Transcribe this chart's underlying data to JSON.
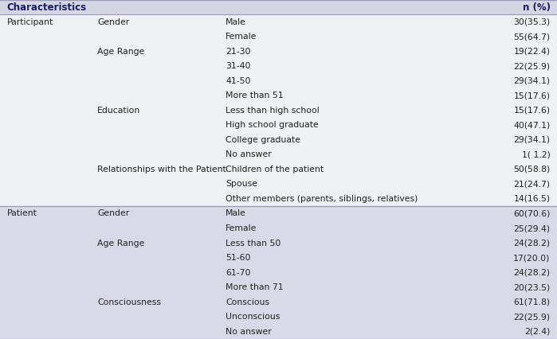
{
  "rows": [
    {
      "group": "Participant",
      "category": "Gender",
      "subcategory": "Male",
      "value": "30(35.3)",
      "section": "participant"
    },
    {
      "group": "",
      "category": "",
      "subcategory": "Female",
      "value": "55(64.7)",
      "section": "participant"
    },
    {
      "group": "",
      "category": "Age Range",
      "subcategory": "21-30",
      "value": "19(22.4)",
      "section": "participant"
    },
    {
      "group": "",
      "category": "",
      "subcategory": "31-40",
      "value": "22(25.9)",
      "section": "participant"
    },
    {
      "group": "",
      "category": "",
      "subcategory": "41-50",
      "value": "29(34.1)",
      "section": "participant"
    },
    {
      "group": "",
      "category": "",
      "subcategory": "More than 51",
      "value": "15(17.6)",
      "section": "participant"
    },
    {
      "group": "",
      "category": "Education",
      "subcategory": "Less than high school",
      "value": "15(17.6)",
      "section": "participant"
    },
    {
      "group": "",
      "category": "",
      "subcategory": "High school graduate",
      "value": "40(47.1)",
      "section": "participant"
    },
    {
      "group": "",
      "category": "",
      "subcategory": "College graduate",
      "value": "29(34.1)",
      "section": "participant"
    },
    {
      "group": "",
      "category": "",
      "subcategory": "No answer",
      "value": "1( 1.2)",
      "section": "participant"
    },
    {
      "group": "",
      "category": "Relationships with the Patient",
      "subcategory": "Children of the patient",
      "value": "50(58.8)",
      "section": "participant"
    },
    {
      "group": "",
      "category": "",
      "subcategory": "Spouse",
      "value": "21(24.7)",
      "section": "participant"
    },
    {
      "group": "",
      "category": "",
      "subcategory": "Other members (parents, siblings, relatives)",
      "value": "14(16.5)",
      "section": "participant"
    },
    {
      "group": "Patient",
      "category": "Gender",
      "subcategory": "Male",
      "value": "60(70.6)",
      "section": "patient"
    },
    {
      "group": "",
      "category": "",
      "subcategory": "Female",
      "value": "25(29.4)",
      "section": "patient"
    },
    {
      "group": "",
      "category": "Age Range",
      "subcategory": "Less than 50",
      "value": "24(28.2)",
      "section": "patient"
    },
    {
      "group": "",
      "category": "",
      "subcategory": "51-60",
      "value": "17(20.0)",
      "section": "patient"
    },
    {
      "group": "",
      "category": "",
      "subcategory": "61-70",
      "value": "24(28.2)",
      "section": "patient"
    },
    {
      "group": "",
      "category": "",
      "subcategory": "More than 71",
      "value": "20(23.5)",
      "section": "patient"
    },
    {
      "group": "",
      "category": "Consciousness",
      "subcategory": "Conscious",
      "value": "61(71.8)",
      "section": "patient"
    },
    {
      "group": "",
      "category": "",
      "subcategory": "Unconscious",
      "value": "22(25.9)",
      "section": "patient"
    },
    {
      "group": "",
      "category": "",
      "subcategory": "No answer",
      "value": "2(2.4)",
      "section": "patient"
    }
  ],
  "header_bg": "#d4d6e2",
  "participant_bg": "#f0f1f5",
  "patient_bg": "#d8dae8",
  "separator_color": "#9999bb",
  "header_text_color": "#1a1a6e",
  "body_text_color": "#222222",
  "col_group": 0.012,
  "col_category": 0.175,
  "col_subcategory": 0.405,
  "col_value": 0.988,
  "font_size": 7.8,
  "header_font_size": 8.5
}
